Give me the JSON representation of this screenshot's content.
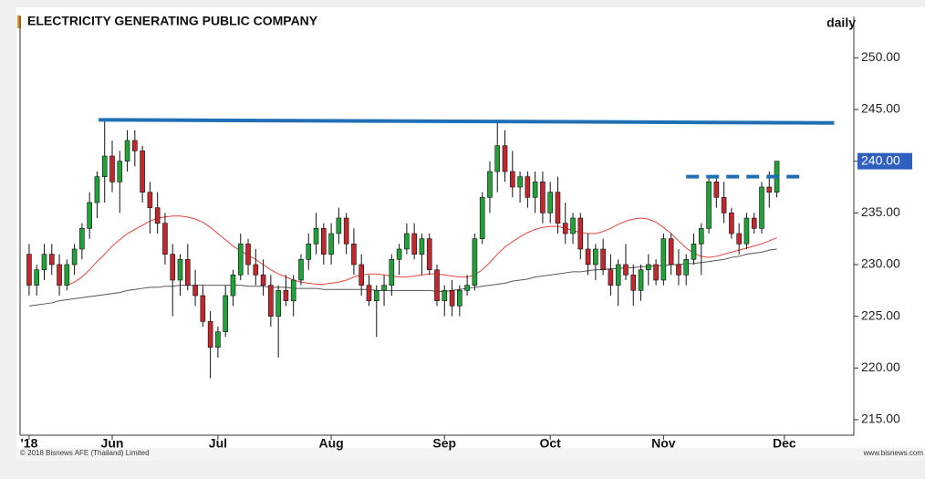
{
  "chart_data": {
    "type": "candlestick",
    "title": "ELECTRICITY GENERATING PUBLIC COMPANY",
    "period": "daily",
    "footer_left": "© 2018 Bisnews AFE (Thailand) Limited",
    "footer_right": "www.bisnews.com",
    "up_color": "#22a03a",
    "down_color": "#c0282d",
    "ylim": [
      213.5,
      254
    ],
    "xlim": [
      -1.2,
      109.2
    ],
    "yticks": [
      {
        "value": 215,
        "label": "215.00"
      },
      {
        "value": 220,
        "label": "220.00"
      },
      {
        "value": 225,
        "label": "225.00"
      },
      {
        "value": 230,
        "label": "230.00"
      },
      {
        "value": 235,
        "label": "235.00"
      },
      {
        "value": 240,
        "label": "240.00"
      },
      {
        "value": 245,
        "label": "245.00"
      },
      {
        "value": 250,
        "label": "250.00"
      }
    ],
    "xticks": [
      {
        "value": 0,
        "label": "'18"
      },
      {
        "value": 11,
        "label": "Jun"
      },
      {
        "value": 25,
        "label": "Jul"
      },
      {
        "value": 40,
        "label": "Aug"
      },
      {
        "value": 55,
        "label": "Sep"
      },
      {
        "value": 69,
        "label": "Oct"
      },
      {
        "value": 84,
        "label": "Nov"
      },
      {
        "value": 100,
        "label": "Dec"
      }
    ],
    "last_price": {
      "value": 240,
      "label": "240.00",
      "color": "#2f5fbf"
    },
    "ohlc": [
      [
        231,
        232,
        227,
        228
      ],
      [
        228,
        230,
        227,
        229.5
      ],
      [
        229.5,
        232,
        228.5,
        231
      ],
      [
        231,
        232,
        229,
        230
      ],
      [
        230,
        231,
        227,
        228
      ],
      [
        228,
        230.5,
        227.5,
        230
      ],
      [
        230,
        232,
        229,
        231.5
      ],
      [
        231.5,
        234,
        230.5,
        233.5
      ],
      [
        233.5,
        237,
        232.5,
        236
      ],
      [
        236,
        239,
        234.5,
        238.5
      ],
      [
        238.5,
        244,
        236,
        240.5
      ],
      [
        240.5,
        242,
        237,
        238
      ],
      [
        238,
        241,
        235,
        240
      ],
      [
        240,
        243,
        239,
        242
      ],
      [
        242,
        243,
        239.5,
        241
      ],
      [
        241,
        241.5,
        236,
        237
      ],
      [
        237,
        238,
        233,
        235.5
      ],
      [
        235.5,
        237,
        233,
        234
      ],
      [
        234,
        235,
        230,
        231
      ],
      [
        231,
        232,
        225,
        228.5
      ],
      [
        228.5,
        231,
        227,
        230.5
      ],
      [
        230.5,
        232,
        227.5,
        228
      ],
      [
        228,
        229.5,
        226,
        227
      ],
      [
        227,
        228,
        224,
        224.5
      ],
      [
        224.5,
        225.5,
        219,
        222
      ],
      [
        222,
        224,
        221,
        223.5
      ],
      [
        223.5,
        228,
        223,
        227
      ],
      [
        227,
        229.5,
        226,
        229
      ],
      [
        229,
        233,
        228.5,
        232
      ],
      [
        232,
        232.5,
        229,
        230
      ],
      [
        230,
        231.5,
        228,
        229
      ],
      [
        229,
        230.5,
        227,
        228
      ],
      [
        228,
        229,
        224,
        225
      ],
      [
        225,
        228,
        221,
        227.5
      ],
      [
        227.5,
        229,
        226,
        226.5
      ],
      [
        226.5,
        229,
        225,
        228.5
      ],
      [
        228.5,
        231,
        228,
        230.5
      ],
      [
        230.5,
        233,
        229.5,
        232
      ],
      [
        232,
        235,
        231,
        233.5
      ],
      [
        233.5,
        234,
        230,
        231
      ],
      [
        231,
        234,
        230,
        233
      ],
      [
        233,
        235.5,
        232,
        234.5
      ],
      [
        234.5,
        235,
        231,
        232
      ],
      [
        232,
        233.5,
        229,
        230
      ],
      [
        230,
        231,
        227,
        228
      ],
      [
        228,
        229,
        226,
        226.5
      ],
      [
        226.5,
        228,
        223,
        227.5
      ],
      [
        227.5,
        229,
        226,
        228
      ],
      [
        228,
        231,
        227,
        230.5
      ],
      [
        230.5,
        232,
        229,
        231.5
      ],
      [
        231.5,
        234,
        231,
        233
      ],
      [
        233,
        234,
        230.5,
        231
      ],
      [
        231,
        233,
        229,
        232.5
      ],
      [
        232.5,
        233,
        229,
        229.5
      ],
      [
        229.5,
        230,
        226,
        226.5
      ],
      [
        226.5,
        228,
        225,
        227.5
      ],
      [
        227.5,
        228.5,
        225,
        226
      ],
      [
        226,
        228,
        225,
        227.5
      ],
      [
        227.5,
        229,
        227,
        228
      ],
      [
        228,
        233,
        227.5,
        232.5
      ],
      [
        232.5,
        237,
        232,
        236.5
      ],
      [
        236.5,
        240,
        235,
        239
      ],
      [
        239,
        244,
        237,
        241.5
      ],
      [
        241.5,
        243,
        238,
        239
      ],
      [
        239,
        241,
        236.5,
        237.5
      ],
      [
        237.5,
        239,
        236,
        238.5
      ],
      [
        238.5,
        239,
        235.5,
        236.5
      ],
      [
        236.5,
        239,
        235,
        238
      ],
      [
        238,
        239,
        234,
        235
      ],
      [
        235,
        238,
        234,
        237
      ],
      [
        237,
        238.5,
        233,
        234
      ],
      [
        234,
        236,
        232,
        233
      ],
      [
        233,
        235,
        232,
        234.5
      ],
      [
        234.5,
        235,
        230.5,
        231.5
      ],
      [
        231.5,
        233,
        229,
        230
      ],
      [
        230,
        232,
        228.5,
        231.5
      ],
      [
        231.5,
        232.5,
        229,
        229.5
      ],
      [
        229.5,
        231,
        227,
        228
      ],
      [
        228,
        230.5,
        226,
        230
      ],
      [
        230,
        232,
        228.5,
        229
      ],
      [
        229,
        230,
        226,
        227.5
      ],
      [
        227.5,
        230,
        226.5,
        229.5
      ],
      [
        229.5,
        231,
        228,
        230
      ],
      [
        230,
        230.5,
        228,
        228.5
      ],
      [
        228.5,
        233,
        228,
        232.5
      ],
      [
        232.5,
        233,
        229,
        230
      ],
      [
        230,
        231.5,
        228,
        229
      ],
      [
        229,
        231,
        228,
        230.5
      ],
      [
        230.5,
        233,
        230,
        232
      ],
      [
        232,
        234,
        229,
        233.5
      ],
      [
        233.5,
        238.5,
        233,
        238
      ],
      [
        238,
        238.5,
        235.5,
        236.5
      ],
      [
        236.5,
        238,
        234,
        235
      ],
      [
        235,
        235.5,
        232.5,
        233
      ],
      [
        233,
        234,
        231,
        232
      ],
      [
        232,
        235,
        231.5,
        234.5
      ],
      [
        234.5,
        235,
        233,
        233.5
      ],
      [
        233.5,
        238,
        233,
        237.5
      ],
      [
        237.5,
        239,
        235.5,
        237
      ],
      [
        237,
        240,
        236.5,
        240
      ]
    ],
    "moving_averages": [
      {
        "color": "#e8423a",
        "values": [
          null,
          null,
          null,
          null,
          null,
          228.0,
          228.3,
          228.8,
          229.5,
          230.3,
          231.0,
          231.8,
          232.4,
          233.0,
          233.4,
          233.8,
          234.2,
          234.5,
          234.6,
          234.7,
          234.7,
          234.6,
          234.4,
          234.1,
          233.6,
          233.0,
          232.4,
          231.8,
          231.3,
          230.9,
          230.5,
          230.0,
          229.5,
          229.1,
          228.8,
          228.5,
          228.3,
          228.2,
          228.1,
          228.1,
          228.2,
          228.3,
          228.5,
          228.8,
          229.0,
          229.1,
          229.1,
          229.0,
          228.9,
          228.8,
          228.8,
          228.9,
          229.0,
          229.1,
          229.1,
          229.0,
          228.9,
          228.8,
          228.8,
          229.0,
          229.5,
          230.2,
          231.0,
          231.7,
          232.2,
          232.7,
          233.1,
          233.4,
          233.6,
          233.7,
          233.7,
          233.5,
          233.3,
          233.1,
          233.0,
          233.0,
          233.2,
          233.5,
          233.9,
          234.2,
          234.4,
          234.5,
          234.4,
          234.1,
          233.6,
          233.0,
          232.3,
          231.6,
          231.1,
          230.8,
          230.7,
          230.8,
          231.0,
          231.2,
          231.4,
          231.6,
          231.8,
          232.0,
          232.3,
          232.6
        ]
      },
      {
        "color": "#555555",
        "values": [
          226.0,
          226.1,
          226.2,
          226.3,
          226.5,
          226.6,
          226.7,
          226.8,
          226.9,
          227.0,
          227.1,
          227.2,
          227.3,
          227.5,
          227.6,
          227.7,
          227.8,
          227.8,
          227.9,
          227.9,
          228.0,
          228.0,
          228.0,
          228.0,
          228.0,
          228.0,
          228.0,
          228.0,
          228.0,
          227.9,
          227.9,
          227.9,
          227.8,
          227.8,
          227.8,
          227.7,
          227.7,
          227.7,
          227.7,
          227.6,
          227.6,
          227.6,
          227.6,
          227.6,
          227.6,
          227.6,
          227.5,
          227.5,
          227.5,
          227.5,
          227.5,
          227.5,
          227.5,
          227.5,
          227.4,
          227.4,
          227.5,
          227.6,
          227.7,
          227.8,
          227.9,
          228.0,
          228.1,
          228.2,
          228.4,
          228.5,
          228.6,
          228.8,
          228.9,
          229.0,
          229.1,
          229.2,
          229.3,
          229.3,
          229.4,
          229.5,
          229.5,
          229.6,
          229.6,
          229.7,
          229.7,
          229.8,
          229.8,
          229.9,
          229.9,
          230.0,
          230.0,
          230.1,
          230.1,
          230.2,
          230.3,
          230.4,
          230.5,
          230.7,
          230.8,
          231.0,
          231.1,
          231.2,
          231.4,
          231.5
        ]
      }
    ],
    "lines": [
      {
        "color": "#1f6fb5",
        "dashed": false,
        "points": [
          [
            9.2,
            244
          ],
          [
            106.6,
            243.7
          ]
        ]
      },
      {
        "color": "#1f6fb5",
        "dashed": true,
        "points": [
          [
            87,
            238.5
          ],
          [
            102.4,
            238.5
          ]
        ]
      }
    ]
  }
}
